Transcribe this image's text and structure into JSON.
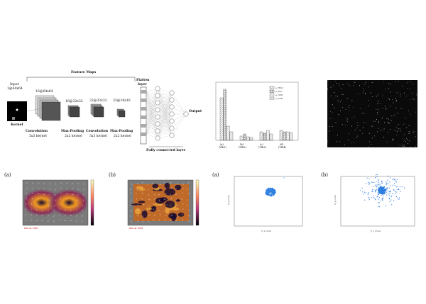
{
  "cnn_diagram": {
    "feature_maps_title": "Feature Maps",
    "input_label_line1": "Input",
    "input_label_line2": "1@64x64",
    "kernel_label": "Kernel",
    "stage_dims": [
      "16@64x64",
      "16@32x32",
      "32@32x32",
      "32@16x16"
    ],
    "stage_names": [
      "Convolution",
      "Max-Pooling",
      "Convolution",
      "Max-Pooling"
    ],
    "stage_kernels": [
      "3x3 kernel",
      "2x2 kernel",
      "3x3 kernel",
      "2x2 kernel"
    ],
    "flatten_label_line1": "Flatten",
    "flatten_label_line2": "layer",
    "output_label": "Output",
    "fc_label": "Fully connected layer"
  },
  "bar_chart": {
    "legend": [
      "a_TRC2",
      "a_2DC",
      "a_CNN",
      "a_GAN"
    ],
    "categories": [
      "(a)",
      "(b)",
      "(c)",
      "(d)"
    ],
    "category_sub": [
      "(Vlb1)",
      "(Vlb2)",
      "(Vlb3)",
      "(Vlb4)"
    ],
    "colors": {
      "hatch1": "#888888",
      "hatch2": "#555555",
      "hatch3": "#999999",
      "hatch4": "#bbbbbb"
    }
  },
  "panel_labels": {
    "c1": "(a)",
    "c2": "(b)",
    "c3": "(a)",
    "c4": "(b)"
  },
  "velocity_panels": {
    "colorbar_ticks": [
      "1.0",
      "0.8",
      "0.6",
      "0.4",
      "0.2",
      "0.0"
    ],
    "red_note": "Max vel: 0.002"
  },
  "scatter_panels": {
    "left": {
      "xlabel": "V_x (m/s)",
      "ylabel": "V_y (m/s)",
      "color": "#2f7fe0"
    },
    "right": {
      "xlabel": "V_x (m/s)",
      "ylabel": "V_y (m/s)",
      "color": "#2f7fe0"
    }
  }
}
